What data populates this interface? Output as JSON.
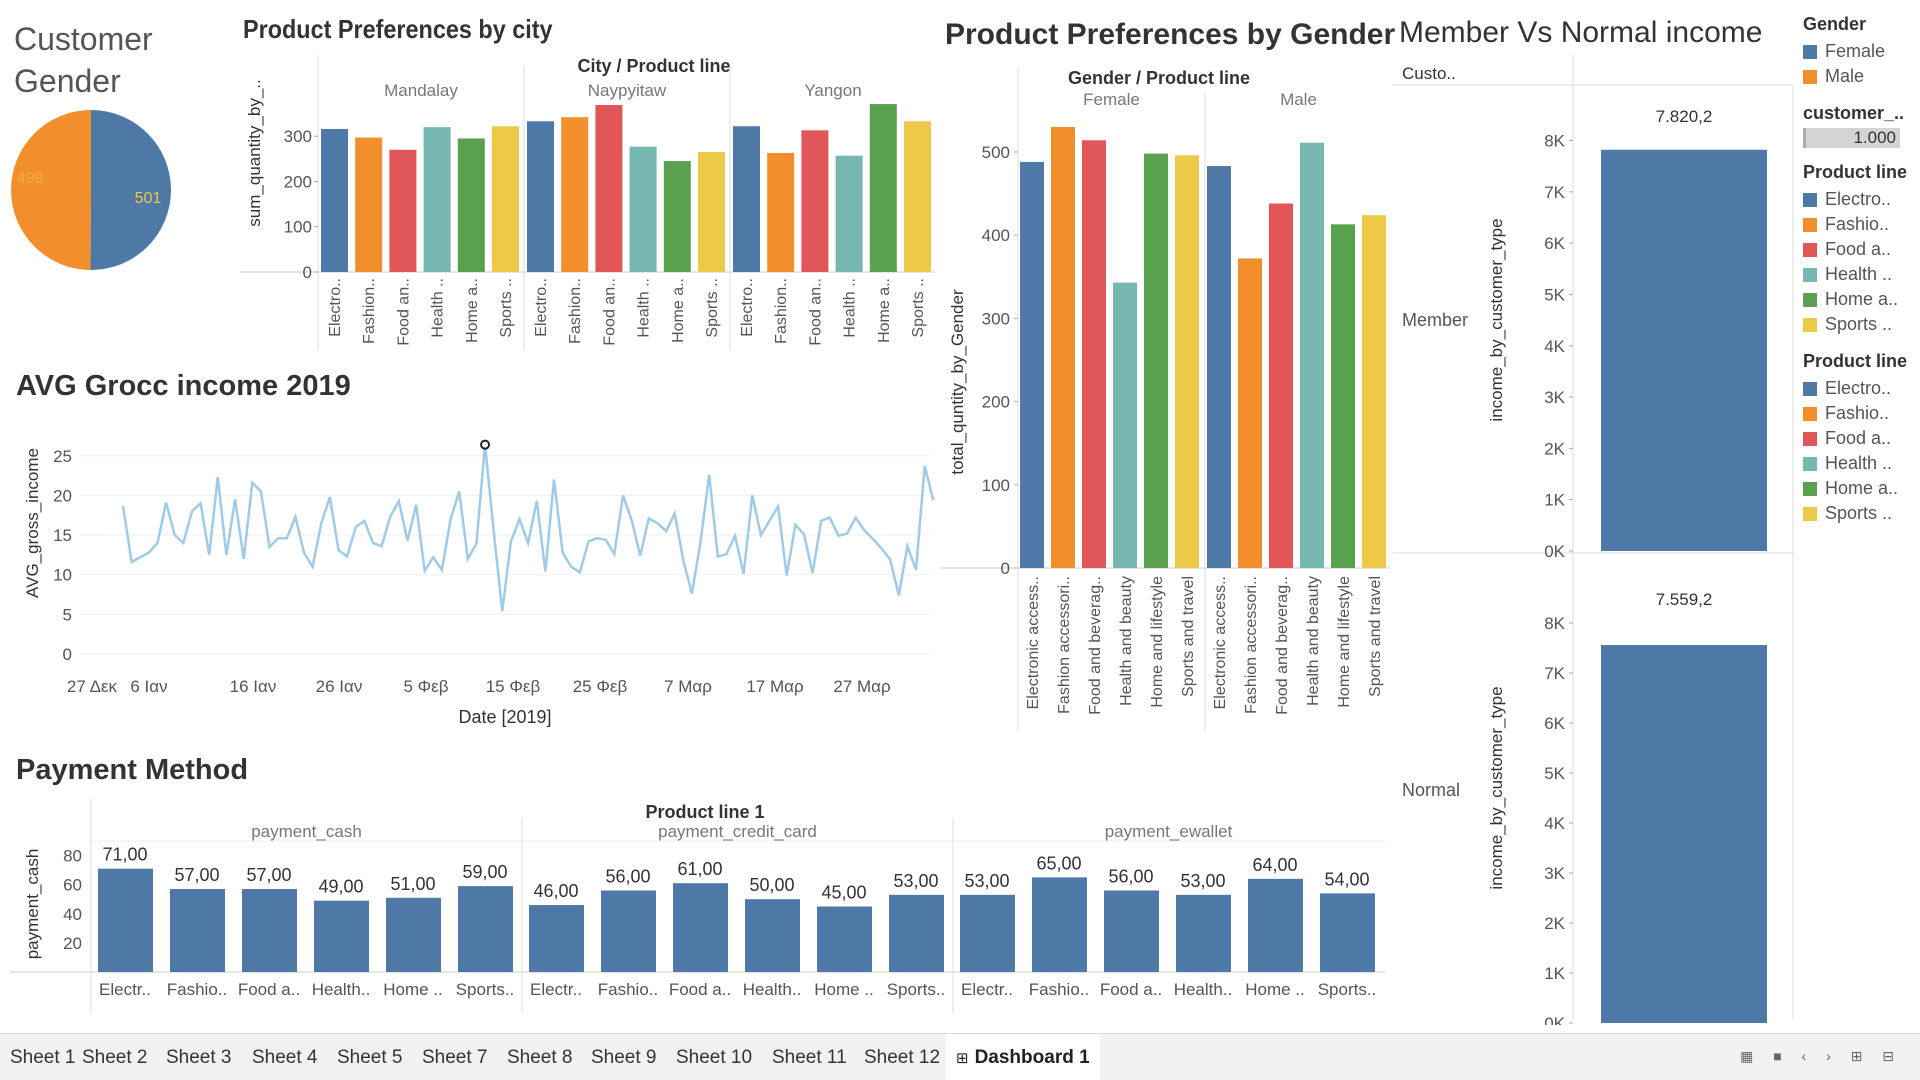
{
  "colors": {
    "blue": "#4e79a7",
    "orange": "#f28e2b",
    "red": "#e15759",
    "teal": "#76b7b2",
    "green": "#59a14f",
    "yellow": "#edc948",
    "line": "#a0cbe8"
  },
  "customer_gender": {
    "title_line1": "Customer",
    "title_line2": "Gender",
    "female_label": "501",
    "male_label": "499"
  },
  "city_chart": {
    "title": "Product Preferences by city",
    "header": "City  /  Product line",
    "ylabel": "sum_quantity_by_..",
    "cities": [
      "Mandalay",
      "Naypyitaw",
      "Yangon"
    ],
    "yticks": [
      "300",
      "200",
      "100",
      "0"
    ],
    "xlabels": [
      "Electro..",
      "Fashion..",
      "Food an..",
      "Health ..",
      "Home a..",
      "Sports .."
    ]
  },
  "gender_chart": {
    "title": "Product Preferences by Gender",
    "header": "Gender  /  Product line",
    "ylabel": "total_quntity_by_Gender",
    "genders": [
      "Female",
      "Male"
    ],
    "yticks": [
      "500",
      "400",
      "300",
      "200",
      "100",
      "0"
    ],
    "xlabels": [
      "Electronic access..",
      "Fashion accessori..",
      "Food and beverag..",
      "Health and beauty",
      "Home and lifestyle",
      "Sports and travel"
    ]
  },
  "member_chart": {
    "title": "Member Vs Normal income",
    "header": "Custo..",
    "ylabel": "income_by_customer_type",
    "rows": [
      "Member",
      "Normal"
    ],
    "yticks": [
      "8K",
      "7K",
      "6K",
      "5K",
      "4K",
      "3K",
      "2K",
      "1K",
      "0K"
    ],
    "member_value_label": "7.820,2",
    "normal_value_label": "7.559,2"
  },
  "avg_chart": {
    "title": "AVG Grocc income 2019",
    "ylabel": "AVG_gross_income",
    "xlabel": "Date [2019]",
    "yticks": [
      "25",
      "20",
      "15",
      "10",
      "5",
      "0"
    ],
    "xticks": [
      "27 Δεκ",
      "6 Ιαν",
      "16 Ιαν",
      "26 Ιαν",
      "5 Φεβ",
      "15 Φεβ",
      "25 Φεβ",
      "7 Μαρ",
      "17 Μαρ",
      "27 Μαρ"
    ]
  },
  "payment_chart": {
    "title": "Payment Method",
    "header": "Product line 1",
    "ylabel": "payment_cash",
    "groups": [
      "payment_cash",
      "payment_credit_card",
      "payment_ewallet"
    ],
    "yticks": [
      "80",
      "60",
      "40",
      "20"
    ],
    "xlabels": [
      "Electr..",
      "Fashio..",
      "Food a..",
      "Health..",
      "Home ..",
      "Sports.."
    ]
  },
  "legend": {
    "gender_title": "Gender",
    "gender_items": [
      "Female",
      "Male"
    ],
    "customer_title": "customer_..",
    "customer_value": "1.000",
    "product_title_1": "Product line",
    "product_items_1": [
      "Electro..",
      "Fashio..",
      "Food a..",
      "Health ..",
      "Home a..",
      "Sports .."
    ],
    "product_title_2": "Product line",
    "product_items_2": [
      "Electro..",
      "Fashio..",
      "Food a..",
      "Health ..",
      "Home a..",
      "Sports .."
    ]
  },
  "tabs": [
    "Sheet 1",
    "Sheet 2",
    "Sheet 3",
    "Sheet 4",
    "Sheet 5",
    "Sheet 7",
    "Sheet 8",
    "Sheet 9",
    "Sheet 10",
    "Sheet 11",
    "Sheet 12",
    "Dashboard 1"
  ],
  "chart_data": [
    {
      "type": "pie",
      "title": "Customer Gender",
      "labels": [
        "Female",
        "Male"
      ],
      "values": [
        501,
        499
      ]
    },
    {
      "type": "bar",
      "title": "Product Preferences by city",
      "ylabel": "sum_quantity_by_..",
      "ylim": [
        0,
        380
      ],
      "categories": [
        "Electronic accessories",
        "Fashion accessories",
        "Food and beverages",
        "Health and beauty",
        "Home and lifestyle",
        "Sports and travel"
      ],
      "series": [
        {
          "name": "Mandalay",
          "values": [
            316,
            297,
            270,
            320,
            295,
            322
          ]
        },
        {
          "name": "Naypyitaw",
          "values": [
            333,
            342,
            369,
            277,
            245,
            265
          ]
        },
        {
          "name": "Yangon",
          "values": [
            322,
            263,
            313,
            257,
            371,
            333
          ]
        }
      ]
    },
    {
      "type": "bar",
      "title": "Product Preferences by Gender",
      "ylabel": "total_quntity_by_Gender",
      "ylim": [
        0,
        560
      ],
      "categories": [
        "Electronic accessories",
        "Fashion accessories",
        "Food and beverages",
        "Health and beauty",
        "Home and lifestyle",
        "Sports and travel"
      ],
      "series": [
        {
          "name": "Female",
          "values": [
            488,
            530,
            514,
            343,
            498,
            496
          ]
        },
        {
          "name": "Male",
          "values": [
            483,
            372,
            438,
            511,
            413,
            424
          ]
        }
      ]
    },
    {
      "type": "bar",
      "title": "Member Vs Normal income",
      "ylabel": "income_by_customer_type",
      "ylim": [
        0,
        8500
      ],
      "categories": [
        "Member",
        "Normal"
      ],
      "values": [
        7820.2,
        7559.2
      ]
    },
    {
      "type": "line",
      "title": "AVG Grocc income 2019",
      "xlabel": "Date [2019]",
      "ylabel": "AVG_gross_income",
      "ylim": [
        0,
        27
      ],
      "x_start": "1 Jan 2019",
      "x_step_days": 1,
      "values": [
        18.7,
        11.6,
        12.2,
        12.8,
        14.0,
        19.1,
        15.0,
        14.0,
        18.0,
        19.0,
        12.5,
        22.3,
        12.5,
        19.5,
        12.0,
        21.6,
        20.5,
        13.5,
        14.6,
        14.6,
        17.3,
        12.8,
        11.0,
        16.5,
        19.8,
        13.1,
        12.3,
        16.0,
        16.8,
        14.0,
        13.6,
        17.3,
        19.3,
        14.3,
        18.8,
        10.5,
        12.2,
        10.6,
        17.0,
        20.5,
        12.0,
        13.9,
        26.4,
        15.5,
        5.4,
        14.2,
        17.0,
        14.0,
        19.3,
        10.4,
        22.0,
        12.8,
        11.0,
        10.3,
        14.2,
        14.6,
        14.4,
        12.6,
        20.0,
        16.9,
        12.4,
        17.1,
        16.5,
        15.5,
        17.7,
        11.8,
        7.6,
        14.1,
        22.6,
        12.3,
        12.6,
        14.9,
        10.1,
        20.0,
        15.0,
        16.8,
        18.6,
        9.9,
        16.3,
        15.1,
        10.2,
        16.8,
        17.2,
        14.9,
        15.2,
        17.2,
        15.6,
        14.5,
        13.3,
        11.9,
        7.4,
        13.6,
        10.6,
        23.7,
        19.4
      ]
    },
    {
      "type": "bar",
      "title": "Payment Method",
      "ylabel": "payment_cash",
      "ylim": [
        0,
        90
      ],
      "categories": [
        "Electronic accessories",
        "Fashion accessories",
        "Food and beverages",
        "Health and beauty",
        "Home and lifestyle",
        "Sports and travel"
      ],
      "series": [
        {
          "name": "payment_cash",
          "values": [
            71,
            57,
            57,
            49,
            51,
            59
          ],
          "labels": [
            "71,00",
            "57,00",
            "57,00",
            "49,00",
            "51,00",
            "59,00"
          ]
        },
        {
          "name": "payment_credit_card",
          "values": [
            46,
            56,
            61,
            50,
            45,
            53
          ],
          "labels": [
            "46,00",
            "56,00",
            "61,00",
            "50,00",
            "45,00",
            "53,00"
          ]
        },
        {
          "name": "payment_ewallet",
          "values": [
            53,
            65,
            56,
            53,
            64,
            54
          ],
          "labels": [
            "53,00",
            "65,00",
            "56,00",
            "53,00",
            "64,00",
            "54,00"
          ]
        }
      ]
    }
  ]
}
